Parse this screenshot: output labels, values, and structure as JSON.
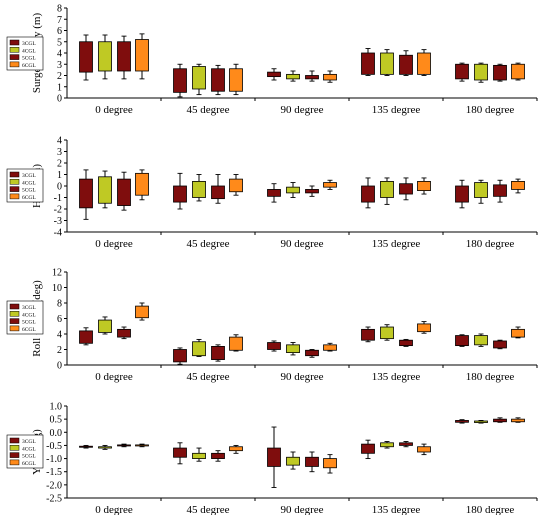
{
  "legend_labels": [
    "3CGL",
    "4CGL",
    "5CGL",
    "6CGL"
  ],
  "series_colors": [
    "#7f0d0d",
    "#bfc924",
    "#7f0d0d",
    "#ff8a1a"
  ],
  "chart_data": [
    {
      "type": "boxplot",
      "ylabel": "Surge + Sway (m)",
      "ylim": [
        0,
        8
      ],
      "yticks": [
        "0",
        "1",
        "2",
        "3",
        "4",
        "5",
        "6",
        "7",
        "8"
      ],
      "categories": [
        "0 degree",
        "45 degree",
        "90 degree",
        "135 degree",
        "180 degree"
      ],
      "series_names": [
        "3CGL",
        "4CGL",
        "5CGL",
        "6CGL"
      ],
      "legend_position": "left",
      "grid": false,
      "boxes": [
        [
          {
            "min": 1.6,
            "q1": 2.3,
            "q3": 5.0,
            "max": 5.6
          },
          {
            "min": 1.7,
            "q1": 2.4,
            "q3": 5.0,
            "max": 5.6
          },
          {
            "min": 1.7,
            "q1": 2.4,
            "q3": 5.0,
            "max": 5.5
          },
          {
            "min": 1.7,
            "q1": 2.4,
            "q3": 5.2,
            "max": 5.7
          }
        ],
        [
          {
            "min": 0.1,
            "q1": 0.5,
            "q3": 2.6,
            "max": 3.0
          },
          {
            "min": 0.3,
            "q1": 0.8,
            "q3": 2.8,
            "max": 3.0
          },
          {
            "min": 0.3,
            "q1": 0.6,
            "q3": 2.6,
            "max": 2.9
          },
          {
            "min": 0.3,
            "q1": 0.6,
            "q3": 2.6,
            "max": 3.0
          }
        ],
        [
          {
            "min": 1.6,
            "q1": 1.9,
            "q3": 2.3,
            "max": 2.6
          },
          {
            "min": 1.5,
            "q1": 1.7,
            "q3": 2.1,
            "max": 2.4
          },
          {
            "min": 1.5,
            "q1": 1.7,
            "q3": 2.0,
            "max": 2.4
          },
          {
            "min": 1.4,
            "q1": 1.6,
            "q3": 2.1,
            "max": 2.4
          }
        ],
        [
          {
            "min": 2.0,
            "q1": 2.1,
            "q3": 4.0,
            "max": 4.4
          },
          {
            "min": 2.0,
            "q1": 2.1,
            "q3": 4.0,
            "max": 4.3
          },
          {
            "min": 2.0,
            "q1": 2.1,
            "q3": 3.8,
            "max": 4.2
          },
          {
            "min": 2.0,
            "q1": 2.1,
            "q3": 4.0,
            "max": 4.3
          }
        ],
        [
          {
            "min": 1.5,
            "q1": 1.7,
            "q3": 3.0,
            "max": 3.1
          },
          {
            "min": 1.4,
            "q1": 1.6,
            "q3": 3.0,
            "max": 3.1
          },
          {
            "min": 1.5,
            "q1": 1.6,
            "q3": 2.9,
            "max": 3.0
          },
          {
            "min": 1.6,
            "q1": 1.7,
            "q3": 3.0,
            "max": 3.1
          }
        ]
      ]
    },
    {
      "type": "boxplot",
      "ylabel": "Heave(m)",
      "ylim": [
        -4,
        4
      ],
      "yticks": [
        "-4",
        "-3",
        "-2",
        "-1",
        "0",
        "1",
        "2",
        "3",
        "4"
      ],
      "categories": [
        "0 degree",
        "45 degree",
        "90 degree",
        "135 degree",
        "180 degree"
      ],
      "series_names": [
        "3CGL",
        "4CGL",
        "5CGL",
        "6CGL"
      ],
      "legend_position": "left",
      "grid": false,
      "boxes": [
        [
          {
            "min": -2.9,
            "q1": -1.9,
            "q3": 0.6,
            "max": 1.4
          },
          {
            "min": -1.9,
            "q1": -1.5,
            "q3": 0.8,
            "max": 1.3
          },
          {
            "min": -2.1,
            "q1": -1.7,
            "q3": 0.6,
            "max": 1.2
          },
          {
            "min": -1.2,
            "q1": -0.8,
            "q3": 1.1,
            "max": 1.4
          }
        ],
        [
          {
            "min": -2.0,
            "q1": -1.4,
            "q3": 0.0,
            "max": 1.1
          },
          {
            "min": -1.3,
            "q1": -1.0,
            "q3": 0.4,
            "max": 1.0
          },
          {
            "min": -1.5,
            "q1": -1.1,
            "q3": 0.0,
            "max": 1.0
          },
          {
            "min": -0.8,
            "q1": -0.5,
            "q3": 0.6,
            "max": 1.0
          }
        ],
        [
          {
            "min": -1.4,
            "q1": -0.9,
            "q3": -0.3,
            "max": 0.2
          },
          {
            "min": -1.0,
            "q1": -0.6,
            "q3": -0.1,
            "max": 0.3
          },
          {
            "min": -0.9,
            "q1": -0.6,
            "q3": -0.3,
            "max": 0.0
          },
          {
            "min": -0.3,
            "q1": -0.1,
            "q3": 0.3,
            "max": 0.5
          }
        ],
        [
          {
            "min": -1.9,
            "q1": -1.4,
            "q3": 0.0,
            "max": 0.7
          },
          {
            "min": -1.6,
            "q1": -1.0,
            "q3": 0.4,
            "max": 0.7
          },
          {
            "min": -1.2,
            "q1": -0.7,
            "q3": 0.2,
            "max": 0.7
          },
          {
            "min": -0.7,
            "q1": -0.4,
            "q3": 0.4,
            "max": 0.7
          }
        ],
        [
          {
            "min": -1.9,
            "q1": -1.4,
            "q3": 0.0,
            "max": 0.5
          },
          {
            "min": -1.5,
            "q1": -1.0,
            "q3": 0.3,
            "max": 0.5
          },
          {
            "min": -1.4,
            "q1": -0.9,
            "q3": 0.1,
            "max": 0.5
          },
          {
            "min": -0.6,
            "q1": -0.3,
            "q3": 0.4,
            "max": 0.6
          }
        ]
      ]
    },
    {
      "type": "boxplot",
      "ylabel": "Roll + Pitch(deg)",
      "ylim": [
        0,
        12
      ],
      "yticks": [
        "0",
        "2",
        "4",
        "6",
        "8",
        "10",
        "12"
      ],
      "categories": [
        "0 degree",
        "45 degree",
        "90 degree",
        "135 degree",
        "180 degree"
      ],
      "series_names": [
        "3CGL",
        "4CGL",
        "5CGL",
        "6CGL"
      ],
      "legend_position": "left",
      "grid": false,
      "boxes": [
        [
          {
            "min": 2.6,
            "q1": 2.8,
            "q3": 4.4,
            "max": 4.8
          },
          {
            "min": 4.0,
            "q1": 4.2,
            "q3": 5.8,
            "max": 6.2
          },
          {
            "min": 3.4,
            "q1": 3.6,
            "q3": 4.6,
            "max": 4.9
          },
          {
            "min": 5.8,
            "q1": 6.1,
            "q3": 7.6,
            "max": 8.0
          }
        ],
        [
          {
            "min": 0.1,
            "q1": 0.4,
            "q3": 2.0,
            "max": 2.2
          },
          {
            "min": 1.1,
            "q1": 1.2,
            "q3": 3.0,
            "max": 3.3
          },
          {
            "min": 0.5,
            "q1": 0.7,
            "q3": 2.4,
            "max": 2.6
          },
          {
            "min": 1.8,
            "q1": 1.9,
            "q3": 3.6,
            "max": 3.9
          }
        ],
        [
          {
            "min": 1.8,
            "q1": 2.0,
            "q3": 2.9,
            "max": 3.1
          },
          {
            "min": 1.3,
            "q1": 1.6,
            "q3": 2.6,
            "max": 2.9
          },
          {
            "min": 1.0,
            "q1": 1.2,
            "q3": 1.9,
            "max": 2.0
          },
          {
            "min": 1.8,
            "q1": 1.9,
            "q3": 2.6,
            "max": 2.8
          }
        ],
        [
          {
            "min": 3.0,
            "q1": 3.2,
            "q3": 4.6,
            "max": 4.9
          },
          {
            "min": 3.2,
            "q1": 3.4,
            "q3": 4.9,
            "max": 5.2
          },
          {
            "min": 2.4,
            "q1": 2.5,
            "q3": 3.2,
            "max": 3.3
          },
          {
            "min": 4.1,
            "q1": 4.3,
            "q3": 5.3,
            "max": 5.6
          }
        ],
        [
          {
            "min": 2.4,
            "q1": 2.5,
            "q3": 3.8,
            "max": 3.9
          },
          {
            "min": 2.4,
            "q1": 2.6,
            "q3": 3.8,
            "max": 4.0
          },
          {
            "min": 2.1,
            "q1": 2.2,
            "q3": 3.1,
            "max": 3.2
          },
          {
            "min": 3.5,
            "q1": 3.6,
            "q3": 4.6,
            "max": 4.9
          }
        ]
      ]
    },
    {
      "type": "boxplot",
      "ylabel": "Yaw (deg)",
      "ylim": [
        -2.5,
        1.0
      ],
      "yticks": [
        "-2.5",
        "-2.0",
        "-1.5",
        "-1.0",
        "-0.5",
        "0.0",
        "0.5",
        "1.0"
      ],
      "categories": [
        "0 degree",
        "45 degree",
        "90 degree",
        "135 degree",
        "180 degree"
      ],
      "series_names": [
        "3CGL",
        "4CGL",
        "5CGL",
        "6CGL"
      ],
      "legend_position": "left",
      "grid": false,
      "boxes": [
        [
          {
            "min": -0.6,
            "q1": -0.57,
            "q3": -0.53,
            "max": -0.5
          },
          {
            "min": -0.65,
            "q1": -0.6,
            "q3": -0.55,
            "max": -0.5
          },
          {
            "min": -0.55,
            "q1": -0.52,
            "q3": -0.48,
            "max": -0.45
          },
          {
            "min": -0.55,
            "q1": -0.52,
            "q3": -0.48,
            "max": -0.45
          }
        ],
        [
          {
            "min": -1.2,
            "q1": -0.95,
            "q3": -0.6,
            "max": -0.4
          },
          {
            "min": -1.1,
            "q1": -1.0,
            "q3": -0.8,
            "max": -0.6
          },
          {
            "min": -1.1,
            "q1": -1.0,
            "q3": -0.8,
            "max": -0.7
          },
          {
            "min": -0.8,
            "q1": -0.7,
            "q3": -0.55,
            "max": -0.5
          }
        ],
        [
          {
            "min": -2.1,
            "q1": -1.3,
            "q3": -0.6,
            "max": 0.2
          },
          {
            "min": -1.4,
            "q1": -1.25,
            "q3": -0.95,
            "max": -0.75
          },
          {
            "min": -1.5,
            "q1": -1.3,
            "q3": -0.95,
            "max": -0.75
          },
          {
            "min": -1.55,
            "q1": -1.35,
            "q3": -1.0,
            "max": -0.85
          }
        ],
        [
          {
            "min": -1.0,
            "q1": -0.8,
            "q3": -0.45,
            "max": -0.3
          },
          {
            "min": -0.6,
            "q1": -0.55,
            "q3": -0.4,
            "max": -0.35
          },
          {
            "min": -0.55,
            "q1": -0.5,
            "q3": -0.4,
            "max": -0.35
          },
          {
            "min": -0.85,
            "q1": -0.75,
            "q3": -0.55,
            "max": -0.45
          }
        ],
        [
          {
            "min": 0.35,
            "q1": 0.38,
            "q3": 0.45,
            "max": 0.48
          },
          {
            "min": 0.35,
            "q1": 0.37,
            "q3": 0.43,
            "max": 0.45
          },
          {
            "min": 0.38,
            "q1": 0.4,
            "q3": 0.5,
            "max": 0.55
          },
          {
            "min": 0.38,
            "q1": 0.4,
            "q3": 0.5,
            "max": 0.55
          }
        ]
      ]
    }
  ]
}
